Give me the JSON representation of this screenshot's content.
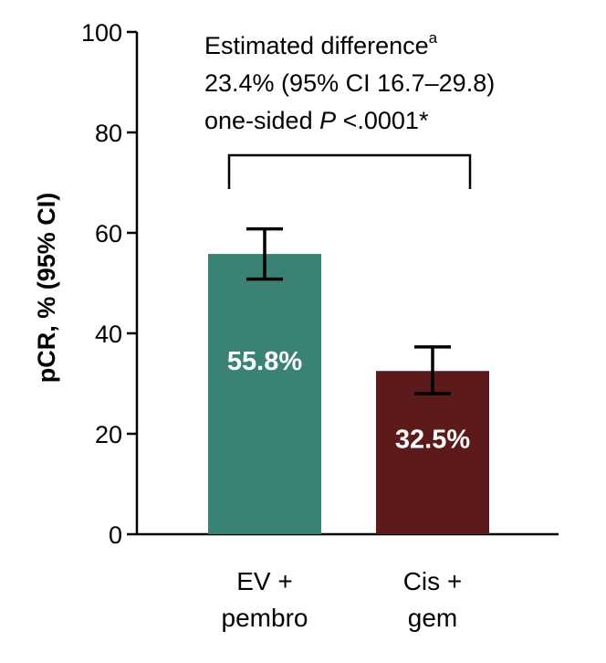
{
  "colors": {
    "ev_pembro": "#3a8274",
    "cis_gem": "#5c1a1a",
    "axis": "#000000"
  },
  "annotation": {
    "line1": "Estimated difference",
    "line1_superscript": "a",
    "line2": "23.4% (95% CI 16.7–29.8)",
    "line3_prefix": "one-sided ",
    "line3_italic": "P",
    "line3_suffix": " <.0001*"
  },
  "chart_data": {
    "type": "bar",
    "ylabel": "pCR, % (95% CI)",
    "ylim": [
      0,
      100
    ],
    "yticks": [
      0,
      20,
      40,
      60,
      80,
      100
    ],
    "grid": false,
    "categories": [
      {
        "line1": "EV +",
        "line2": "pembro"
      },
      {
        "line1": "Cis +",
        "line2": "gem"
      }
    ],
    "values": [
      55.8,
      32.5
    ],
    "value_labels": [
      "55.8%",
      "32.5%"
    ],
    "ci_lower": [
      50.8,
      28.0
    ],
    "ci_upper": [
      60.8,
      37.3
    ],
    "comparison_bracket": {
      "between": [
        0,
        1
      ],
      "level": 75
    }
  }
}
